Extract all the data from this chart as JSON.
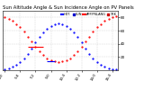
{
  "title": "Sun Altitude Angle & Sun Incidence Angle on PV Panels",
  "blue_x": [
    0,
    1,
    2,
    3,
    4,
    5,
    6,
    7,
    8,
    9,
    10,
    11,
    12,
    13,
    14,
    15,
    16,
    17,
    18,
    19,
    20,
    21,
    22,
    23,
    24,
    25,
    26,
    27,
    28,
    29
  ],
  "blue_y": [
    2,
    3,
    5,
    8,
    12,
    18,
    25,
    33,
    42,
    50,
    57,
    63,
    67,
    70,
    71,
    70,
    67,
    63,
    57,
    50,
    42,
    33,
    25,
    18,
    12,
    8,
    5,
    3,
    2,
    1
  ],
  "red_x": [
    0,
    1,
    2,
    3,
    4,
    5,
    6,
    7,
    8,
    9,
    10,
    11,
    12,
    13,
    14,
    15,
    16,
    17,
    18,
    19,
    20,
    21,
    22,
    23,
    24,
    25,
    26,
    27,
    28,
    29
  ],
  "red_y": [
    80,
    78,
    75,
    70,
    65,
    58,
    50,
    43,
    35,
    28,
    23,
    18,
    15,
    13,
    12,
    13,
    15,
    18,
    23,
    28,
    35,
    43,
    50,
    58,
    65,
    70,
    75,
    78,
    80,
    82
  ],
  "ylim": [
    0,
    90
  ],
  "xlim": [
    -0.5,
    29.5
  ],
  "yticks": [
    20,
    40,
    60,
    80
  ],
  "ytick_labels": [
    "20",
    "40",
    "60",
    "80"
  ],
  "xtick_positions": [
    0,
    4,
    8,
    12,
    16,
    20,
    24,
    28
  ],
  "xtick_labels": [
    "4:0",
    "5:4",
    "7:2",
    "9:0",
    "10:4",
    "12:2",
    "14:0",
    "15:4"
  ],
  "grid_color": "#bbbbbb",
  "bg_color": "#ffffff",
  "title_fontsize": 3.8,
  "tick_fontsize": 3.0,
  "dot_size": 1.2,
  "legend_items": [
    "HOT.",
    "SUN",
    "APP.PNLANG",
    "TRK"
  ],
  "legend_colors": [
    "#0000ff",
    "#0000cc",
    "#ff0000",
    "#cc0000"
  ]
}
